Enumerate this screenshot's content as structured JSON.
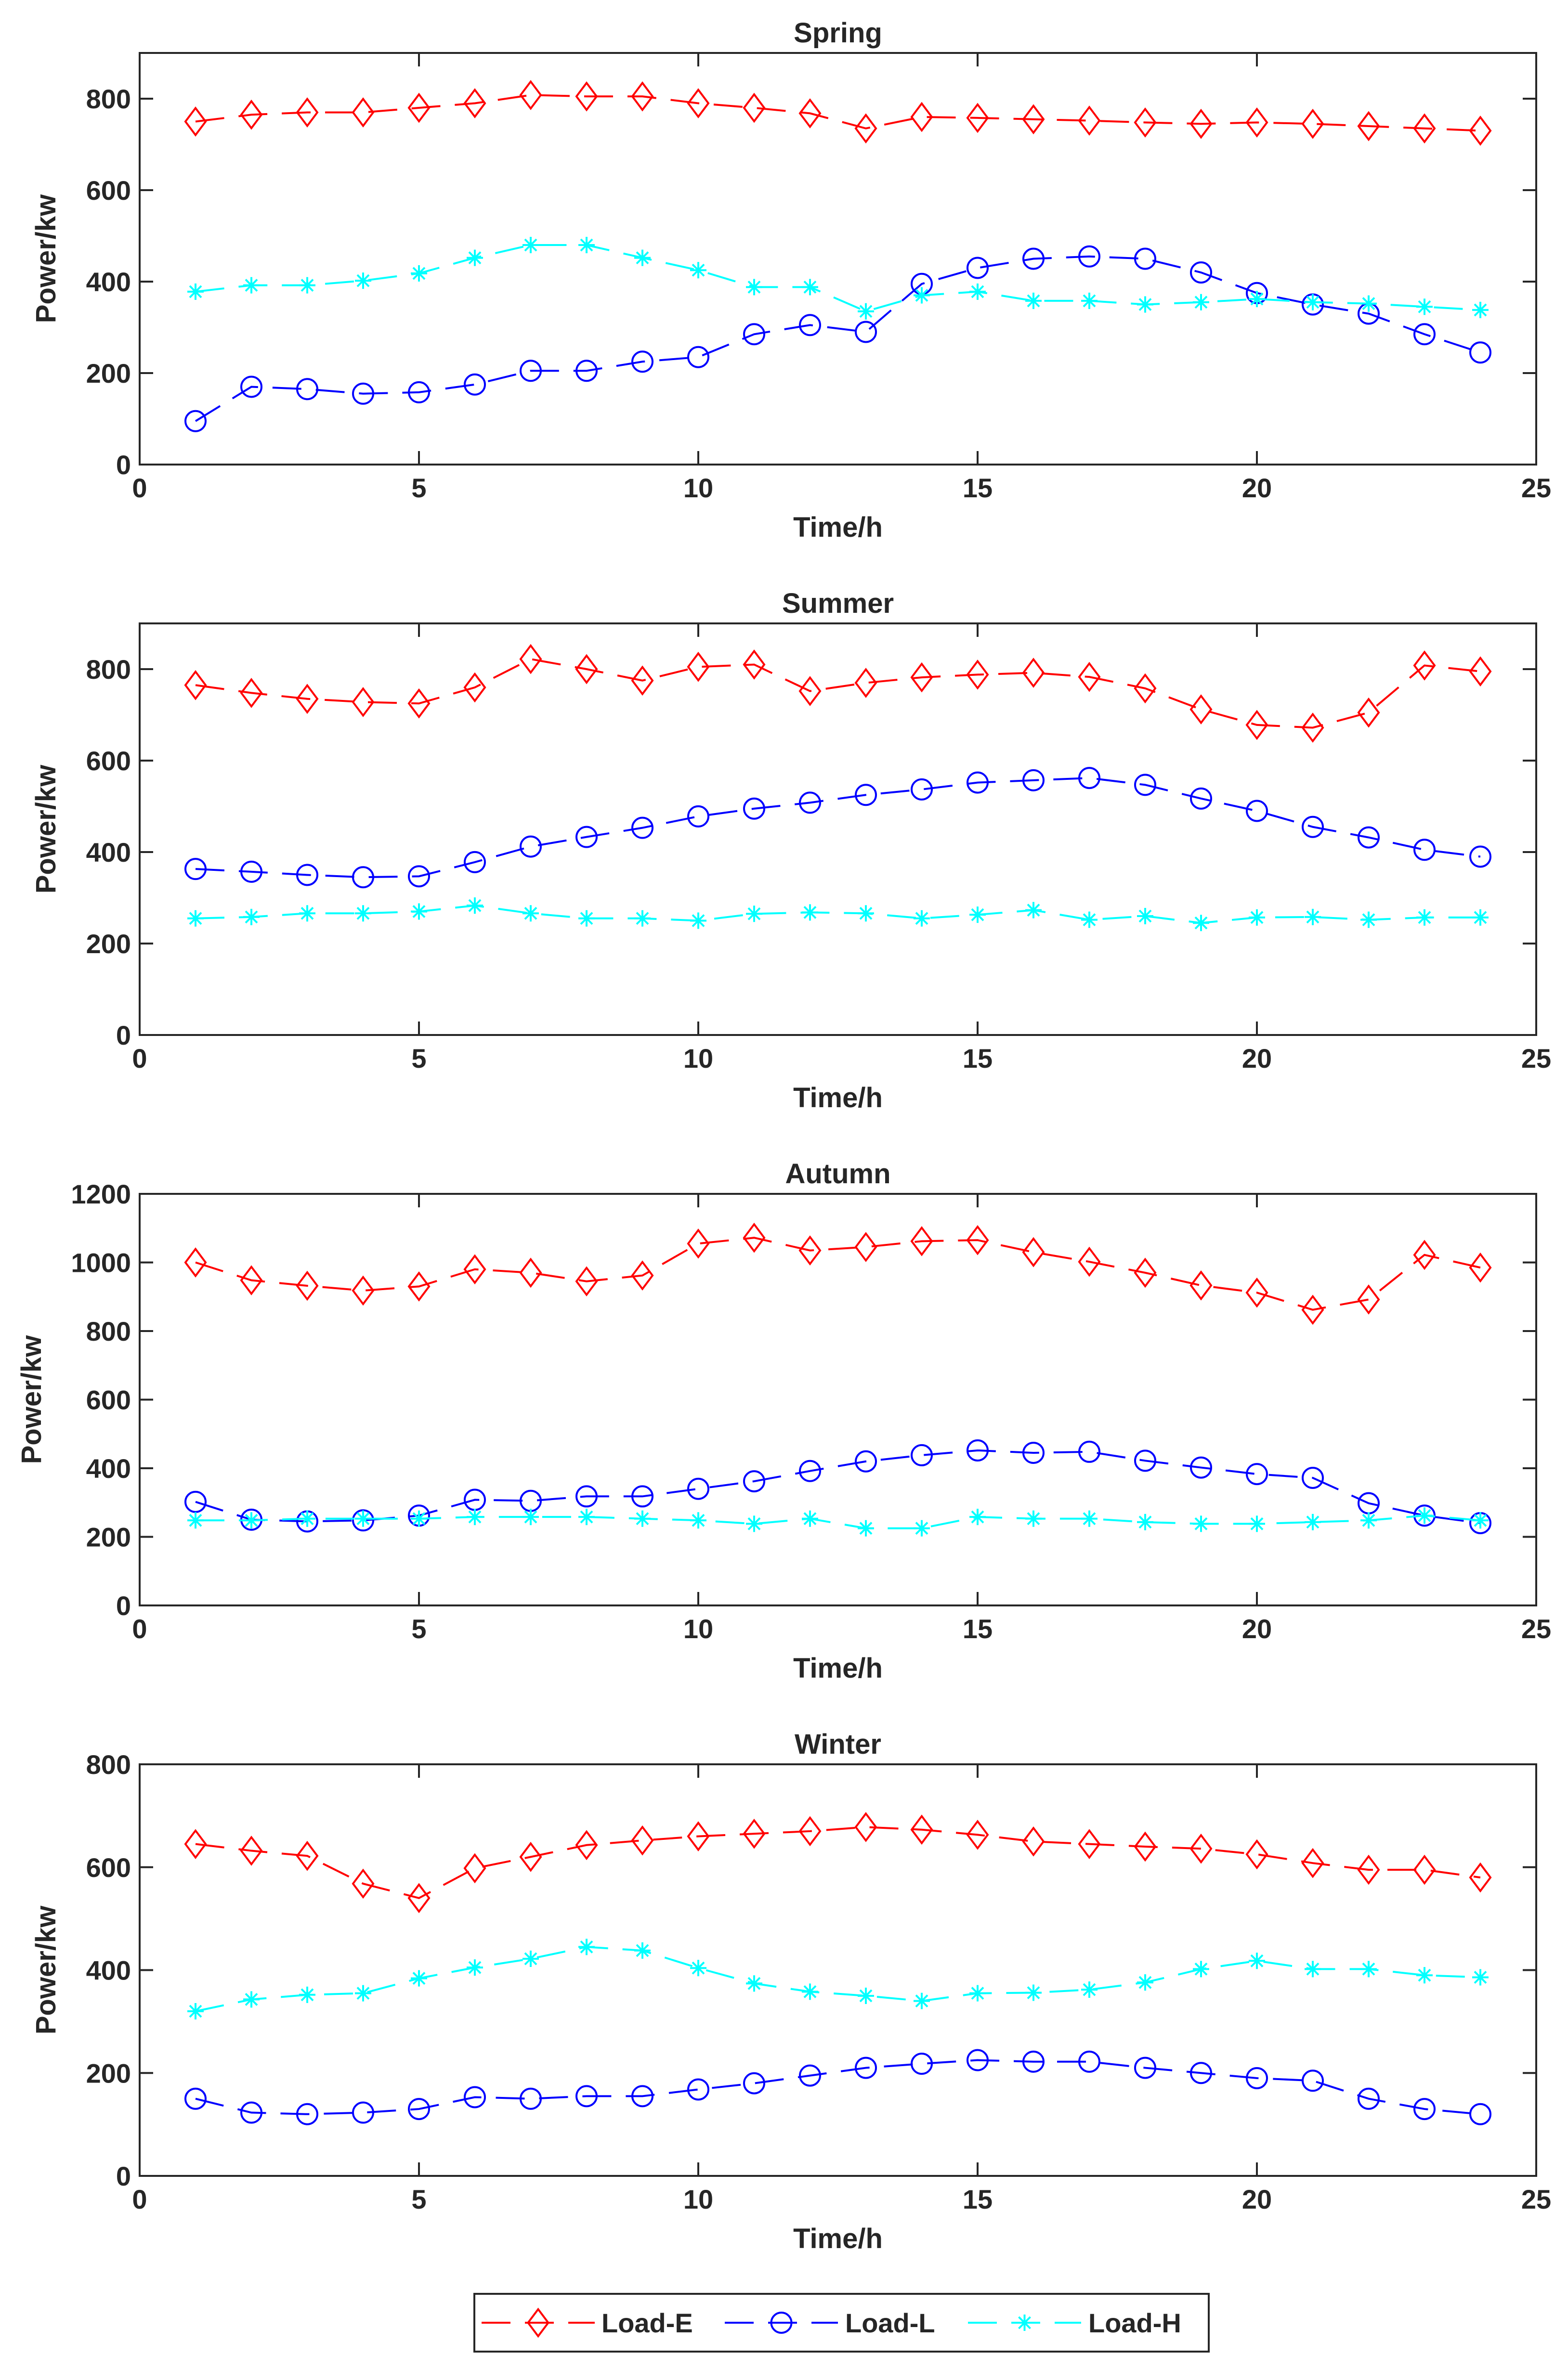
{
  "chart_data": [
    {
      "type": "line",
      "title": "Spring",
      "xlabel": "Time/h",
      "ylabel": "Power/kw",
      "xlim": [
        0,
        25
      ],
      "ylim": [
        0,
        900
      ],
      "xticks": [
        0,
        5,
        10,
        15,
        20,
        25
      ],
      "yticks": [
        0,
        200,
        400,
        600,
        800
      ],
      "x": [
        1,
        2,
        3,
        4,
        5,
        6,
        7,
        8,
        9,
        10,
        11,
        12,
        13,
        14,
        15,
        16,
        17,
        18,
        19,
        20,
        21,
        22,
        23,
        24
      ],
      "series": [
        {
          "name": "Load-E",
          "values": [
            750,
            765,
            770,
            770,
            780,
            790,
            808,
            805,
            805,
            790,
            780,
            768,
            735,
            760,
            758,
            755,
            752,
            748,
            745,
            748,
            745,
            740,
            735,
            730
          ]
        },
        {
          "name": "Load-L",
          "values": [
            95,
            170,
            165,
            155,
            158,
            175,
            205,
            205,
            225,
            235,
            285,
            305,
            290,
            395,
            430,
            450,
            455,
            450,
            420,
            375,
            350,
            330,
            285,
            245
          ]
        },
        {
          "name": "Load-H",
          "values": [
            378,
            392,
            392,
            402,
            418,
            452,
            480,
            480,
            452,
            425,
            388,
            388,
            335,
            370,
            378,
            358,
            358,
            350,
            355,
            362,
            355,
            352,
            345,
            338
          ]
        }
      ]
    },
    {
      "type": "line",
      "title": "Summer",
      "xlabel": "Time/h",
      "ylabel": "Power/kw",
      "xlim": [
        0,
        25
      ],
      "ylim": [
        0,
        900
      ],
      "xticks": [
        0,
        5,
        10,
        15,
        20,
        25
      ],
      "yticks": [
        0,
        200,
        400,
        600,
        800
      ],
      "x": [
        1,
        2,
        3,
        4,
        5,
        6,
        7,
        8,
        9,
        10,
        11,
        12,
        13,
        14,
        15,
        16,
        17,
        18,
        19,
        20,
        21,
        22,
        23,
        24
      ],
      "series": [
        {
          "name": "Load-E",
          "values": [
            765,
            748,
            735,
            728,
            725,
            760,
            822,
            800,
            775,
            805,
            810,
            752,
            770,
            782,
            788,
            792,
            783,
            758,
            712,
            678,
            672,
            705,
            808,
            795
          ]
        },
        {
          "name": "Load-L",
          "values": [
            363,
            357,
            350,
            345,
            347,
            378,
            412,
            433,
            453,
            478,
            495,
            508,
            525,
            537,
            552,
            557,
            562,
            547,
            517,
            490,
            455,
            432,
            405,
            390
          ]
        },
        {
          "name": "Load-H",
          "values": [
            255,
            258,
            266,
            266,
            270,
            283,
            266,
            255,
            255,
            250,
            265,
            268,
            266,
            255,
            263,
            273,
            252,
            260,
            245,
            257,
            258,
            252,
            257,
            257
          ]
        }
      ]
    },
    {
      "type": "line",
      "title": "Autumn",
      "xlabel": "Time/h",
      "ylabel": "Power/kw",
      "xlim": [
        0,
        25
      ],
      "ylim": [
        0,
        1200
      ],
      "xticks": [
        0,
        5,
        10,
        15,
        20,
        25
      ],
      "yticks": [
        0,
        200,
        400,
        600,
        800,
        1000,
        1200
      ],
      "x": [
        1,
        2,
        3,
        4,
        5,
        6,
        7,
        8,
        9,
        10,
        11,
        12,
        13,
        14,
        15,
        16,
        17,
        18,
        19,
        20,
        21,
        22,
        23,
        24
      ],
      "series": [
        {
          "name": "Load-E",
          "values": [
            1000,
            948,
            932,
            918,
            930,
            980,
            970,
            945,
            962,
            1055,
            1072,
            1035,
            1045,
            1062,
            1065,
            1030,
            1002,
            970,
            933,
            912,
            862,
            892,
            1022,
            985
          ]
        },
        {
          "name": "Load-L",
          "values": [
            302,
            250,
            245,
            248,
            262,
            308,
            305,
            318,
            318,
            340,
            362,
            392,
            420,
            438,
            452,
            445,
            448,
            422,
            402,
            383,
            372,
            298,
            262,
            240
          ]
        },
        {
          "name": "Load-H",
          "values": [
            248,
            248,
            253,
            253,
            253,
            258,
            258,
            258,
            253,
            248,
            238,
            253,
            225,
            225,
            258,
            253,
            253,
            243,
            238,
            238,
            243,
            248,
            262,
            248
          ]
        }
      ]
    },
    {
      "type": "line",
      "title": "Winter",
      "xlabel": "Time/h",
      "ylabel": "Power/kw",
      "xlim": [
        0,
        25
      ],
      "ylim": [
        0,
        800
      ],
      "xticks": [
        0,
        5,
        10,
        15,
        20,
        25
      ],
      "yticks": [
        0,
        200,
        400,
        600,
        800
      ],
      "x": [
        1,
        2,
        3,
        4,
        5,
        6,
        7,
        8,
        9,
        10,
        11,
        12,
        13,
        14,
        15,
        16,
        17,
        18,
        19,
        20,
        21,
        22,
        23,
        24
      ],
      "series": [
        {
          "name": "Load-E",
          "values": [
            645,
            632,
            622,
            568,
            540,
            598,
            620,
            643,
            652,
            660,
            665,
            670,
            678,
            673,
            663,
            650,
            645,
            640,
            636,
            625,
            608,
            595,
            595,
            580
          ]
        },
        {
          "name": "Load-L",
          "values": [
            150,
            123,
            120,
            123,
            130,
            153,
            150,
            155,
            155,
            168,
            180,
            195,
            210,
            218,
            225,
            222,
            222,
            210,
            200,
            190,
            185,
            150,
            130,
            120
          ]
        },
        {
          "name": "Load-H",
          "values": [
            320,
            343,
            352,
            355,
            384,
            405,
            422,
            445,
            438,
            404,
            374,
            358,
            350,
            340,
            355,
            356,
            362,
            376,
            402,
            418,
            402,
            402,
            390,
            386
          ]
        }
      ]
    }
  ],
  "legend": [
    {
      "name": "Load-E",
      "marker": "diamond"
    },
    {
      "name": "Load-L",
      "marker": "circle"
    },
    {
      "name": "Load-H",
      "marker": "asterisk"
    }
  ],
  "colors": {
    "Load-E": "#ff0000",
    "Load-L": "#0000ff",
    "Load-H": "#00ffff",
    "axis": "#262626"
  }
}
